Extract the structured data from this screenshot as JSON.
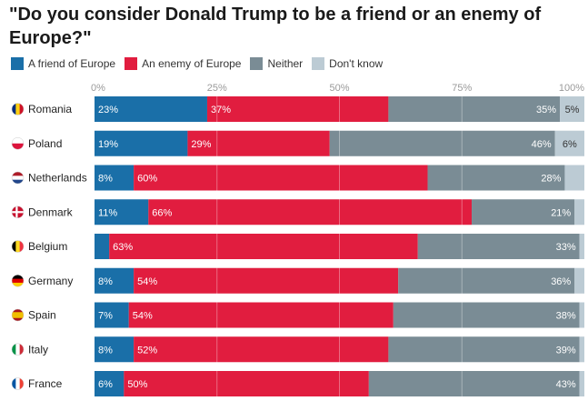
{
  "title": "\"Do you consider Donald Trump to be a friend or an enemy of Europe?\"",
  "colors": {
    "friend": "#1a6fa8",
    "enemy": "#e11d3f",
    "neither": "#7a8c95",
    "dont_know": "#bccbd4",
    "background_band": "#eef1f3"
  },
  "chart_data": {
    "type": "bar",
    "orientation": "horizontal",
    "stacked": true,
    "title": "\"Do you consider Donald Trump to be a friend or an enemy of Europe?\"",
    "xlim": [
      0,
      100
    ],
    "ticks": [
      "0%",
      "25%",
      "50%",
      "75%",
      "100%"
    ],
    "tick_values": [
      0,
      25,
      50,
      75,
      100
    ],
    "legend_position": "top-left",
    "grid": true,
    "categories": [
      "Romania",
      "Poland",
      "Netherlands",
      "Denmark",
      "Belgium",
      "Germany",
      "Spain",
      "Italy",
      "France"
    ],
    "series": [
      {
        "key": "friend",
        "name": "A friend of Europe",
        "values": [
          23,
          19,
          8,
          11,
          3,
          8,
          7,
          8,
          6
        ],
        "labels": [
          "23%",
          "19%",
          "8%",
          "11%",
          "",
          "8%",
          "7%",
          "8%",
          "6%"
        ]
      },
      {
        "key": "enemy",
        "name": "An enemy of Europe",
        "values": [
          37,
          29,
          60,
          66,
          63,
          54,
          54,
          52,
          50
        ],
        "labels": [
          "37%",
          "29%",
          "60%",
          "66%",
          "63%",
          "54%",
          "54%",
          "52%",
          "50%"
        ]
      },
      {
        "key": "neither",
        "name": "Neither",
        "values": [
          35,
          46,
          28,
          21,
          33,
          36,
          38,
          39,
          43
        ],
        "labels": [
          "35%",
          "46%",
          "28%",
          "21%",
          "33%",
          "36%",
          "38%",
          "39%",
          "43%"
        ]
      },
      {
        "key": "dont_know",
        "name": "Don't know",
        "values": [
          5,
          6,
          4,
          2,
          1,
          2,
          1,
          1,
          1
        ],
        "labels": [
          "5%",
          "6%",
          "",
          "",
          "",
          "",
          "",
          "",
          ""
        ]
      }
    ]
  },
  "flags": {
    "Romania": {
      "icon": "romania-flag-icon",
      "colors": [
        "#002b7f",
        "#fcd116",
        "#ce1126"
      ],
      "layout": "vertical"
    },
    "Poland": {
      "icon": "poland-flag-icon",
      "colors": [
        "#ffffff",
        "#dc143c"
      ],
      "layout": "horizontal"
    },
    "Netherlands": {
      "icon": "netherlands-flag-icon",
      "colors": [
        "#ae1c28",
        "#ffffff",
        "#21468b"
      ],
      "layout": "horizontal"
    },
    "Denmark": {
      "icon": "denmark-flag-icon",
      "colors": [
        "#c8102e",
        "#ffffff"
      ],
      "layout": "cross"
    },
    "Belgium": {
      "icon": "belgium-flag-icon",
      "colors": [
        "#000000",
        "#fdda24",
        "#ef3340"
      ],
      "layout": "vertical"
    },
    "Germany": {
      "icon": "germany-flag-icon",
      "colors": [
        "#000000",
        "#dd0000",
        "#ffce00"
      ],
      "layout": "horizontal"
    },
    "Spain": {
      "icon": "spain-flag-icon",
      "colors": [
        "#aa151b",
        "#f1bf00",
        "#aa151b"
      ],
      "layout": "spain"
    },
    "Italy": {
      "icon": "italy-flag-icon",
      "colors": [
        "#009246",
        "#ffffff",
        "#ce2b37"
      ],
      "layout": "vertical"
    },
    "France": {
      "icon": "france-flag-icon",
      "colors": [
        "#0055a4",
        "#ffffff",
        "#ef4135"
      ],
      "layout": "vertical"
    }
  }
}
